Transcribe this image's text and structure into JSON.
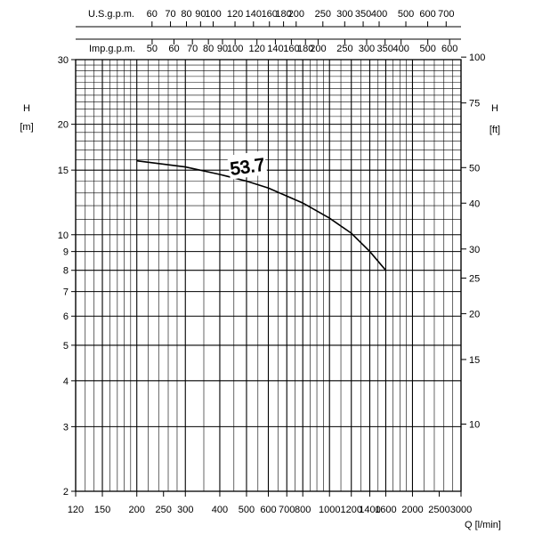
{
  "chart_data": {
    "type": "line",
    "grid": true,
    "x_axis": {
      "label": "Q [l/min]",
      "scale": "log",
      "range": [
        120,
        3000
      ],
      "ticks": [
        120,
        150,
        200,
        250,
        300,
        400,
        500,
        600,
        700,
        800,
        1000,
        1200,
        1400,
        1600,
        2000,
        2500,
        3000
      ]
    },
    "y_axis_left": {
      "label": "H",
      "unit": "[m]",
      "scale": "log",
      "range": [
        2,
        30
      ],
      "ticks": [
        2,
        3,
        4,
        5,
        6,
        7,
        8,
        9,
        10,
        15,
        20,
        30
      ]
    },
    "y_axis_right": {
      "label": "H",
      "unit": "[ft]",
      "scale": "log",
      "ticks": [
        10,
        15,
        20,
        25,
        30,
        40,
        50,
        75,
        100
      ]
    },
    "top_axis_us": {
      "label": "U.S.g.p.m.",
      "ticks": [
        60,
        70,
        80,
        90,
        100,
        120,
        140,
        160,
        180,
        200,
        250,
        300,
        350,
        400,
        500,
        600,
        700
      ]
    },
    "top_axis_imp": {
      "label": "Imp.g.p.m.",
      "ticks": [
        50,
        60,
        70,
        80,
        90,
        100,
        120,
        140,
        160,
        180,
        200,
        250,
        300,
        350,
        400,
        500,
        600
      ]
    },
    "series": [
      {
        "name": "53.7",
        "x": [
          200,
          300,
          400,
          500,
          600,
          800,
          1000,
          1200,
          1400,
          1600
        ],
        "y": [
          15.9,
          15.3,
          14.6,
          14.0,
          13.4,
          12.2,
          11.1,
          10.1,
          9.0,
          8.0
        ]
      }
    ]
  }
}
